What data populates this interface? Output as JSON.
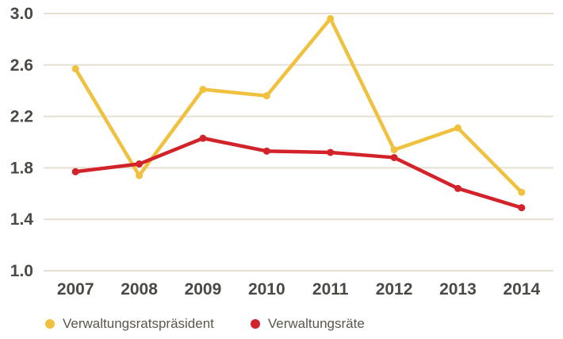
{
  "chart_data": {
    "type": "line",
    "categories": [
      "2007",
      "2008",
      "2009",
      "2010",
      "2011",
      "2012",
      "2013",
      "2014"
    ],
    "series": [
      {
        "name": "Verwaltungsratspräsident",
        "color": "#EFC13E",
        "values": [
          2.57,
          1.74,
          2.41,
          2.36,
          2.96,
          1.94,
          2.11,
          1.61
        ]
      },
      {
        "name": "Verwaltungsräte",
        "color": "#D2232A",
        "values": [
          1.77,
          1.83,
          2.03,
          1.93,
          1.92,
          1.88,
          1.64,
          1.49
        ]
      }
    ],
    "title": "",
    "xlabel": "",
    "ylabel": "",
    "ylim": [
      1.0,
      3.0
    ],
    "yticks": [
      1.0,
      1.4,
      1.8,
      2.2,
      2.6,
      3.0
    ],
    "grid": true,
    "legend_position": "bottom"
  },
  "colors": {
    "grid": "#E7DFD2",
    "tick_text": "#4C4944",
    "legend_text": "#5A564E",
    "background": "#FFFFFF"
  }
}
